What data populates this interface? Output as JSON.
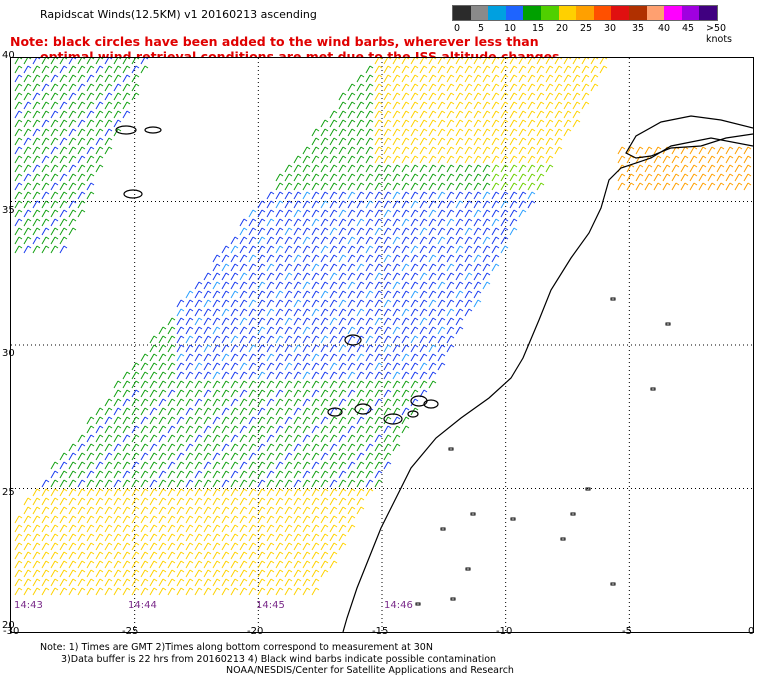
{
  "title": "Rapidscat Winds(12.5KM) v1 20160213 ascending",
  "note": {
    "line1": "Note: black circles have been added to the wind barbs, wherever less than",
    "line2": "optimal wind retrieval conditions are met due to the ISS altitude changes."
  },
  "legend": {
    "labels": [
      "0",
      "5",
      "10",
      "15",
      "20",
      "25",
      "30",
      "35",
      "40",
      "45",
      ">50 knots"
    ],
    "colors": [
      "#2b2b2b",
      "#8a8a8a",
      "#00a0e0",
      "#1e64ff",
      "#00a000",
      "#50d000",
      "#ffd000",
      "#ffa000",
      "#ff5000",
      "#e01010",
      "#b03000",
      "#ffa070",
      "#ff00ff",
      "#a000e0",
      "#400080"
    ]
  },
  "map": {
    "lon_labels": [
      "-30",
      "-25",
      "-20",
      "-15",
      "-10",
      "-5",
      "0"
    ],
    "lat_labels": [
      "40",
      "35",
      "30",
      "25",
      "20"
    ],
    "time_labels": [
      "14:43",
      "14:44",
      "14:45",
      "14:46"
    ],
    "extent": {
      "lon": [
        -30,
        0
      ],
      "lat": [
        20,
        40
      ]
    }
  },
  "footer": {
    "line1": "Note: 1) Times are GMT 2)Times along bottom correspond to measurement at 30N",
    "line2": "3)Data buffer is 22 hrs from 20160213 4) Black wind barbs indicate possible contamination",
    "credit": "NOAA/NESDIS/Center for Satellite Applications and Research"
  }
}
